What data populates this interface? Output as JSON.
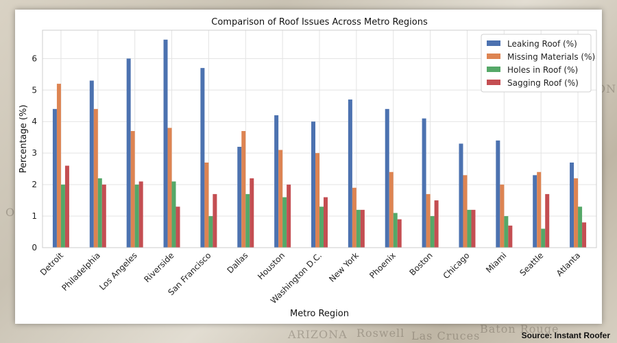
{
  "source_label": "Source: Instant Roofer",
  "colors": {
    "leaking": "#4c72b0",
    "missing": "#dd8452",
    "holes": "#55a868",
    "sagging": "#c44e52"
  },
  "chart_data": {
    "type": "bar",
    "title": "Comparison of Roof Issues Across Metro Regions",
    "xlabel": "Metro Region",
    "ylabel": "Percentage (%)",
    "ylim": [
      0,
      6.9
    ],
    "yticks": [
      0,
      1,
      2,
      3,
      4,
      5,
      6
    ],
    "grid": true,
    "legend_position": "top-right",
    "categories": [
      "Detroit",
      "Philadelphia",
      "Los Angeles",
      "Riverside",
      "San Francisco",
      "Dallas",
      "Houston",
      "Washington D.C.",
      "New York",
      "Phoenix",
      "Boston",
      "Chicago",
      "Miami",
      "Seattle",
      "Atlanta"
    ],
    "series": [
      {
        "name": "Leaking Roof (%)",
        "color": "#4c72b0",
        "values": [
          4.4,
          5.3,
          6.0,
          6.6,
          5.7,
          3.2,
          4.2,
          4.0,
          4.7,
          4.4,
          4.1,
          3.3,
          3.4,
          2.3,
          2.7
        ]
      },
      {
        "name": "Missing Materials (%)",
        "color": "#dd8452",
        "values": [
          5.2,
          4.4,
          3.7,
          3.8,
          2.7,
          3.7,
          3.1,
          3.0,
          1.9,
          2.4,
          1.7,
          2.3,
          2.0,
          2.4,
          2.2
        ]
      },
      {
        "name": "Holes in Roof (%)",
        "color": "#55a868",
        "values": [
          2.0,
          2.2,
          2.0,
          2.1,
          1.0,
          1.7,
          1.6,
          1.3,
          1.2,
          1.1,
          1.0,
          1.2,
          1.0,
          0.6,
          1.3
        ]
      },
      {
        "name": "Sagging Roof (%)",
        "color": "#c44e52",
        "values": [
          2.6,
          2.0,
          2.1,
          1.3,
          1.7,
          2.2,
          2.0,
          1.6,
          1.2,
          0.9,
          1.5,
          1.2,
          0.7,
          1.7,
          0.8
        ]
      }
    ]
  }
}
